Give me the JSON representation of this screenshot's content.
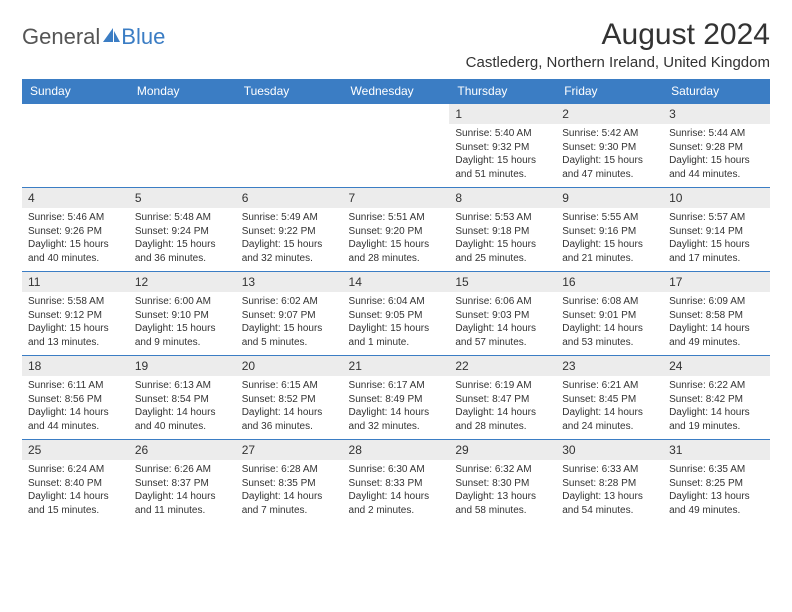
{
  "brand": {
    "name1": "General",
    "name2": "Blue"
  },
  "title": "August 2024",
  "location": "Castlederg, Northern Ireland, United Kingdom",
  "colors": {
    "header_bg": "#3b7dc4",
    "header_text": "#ffffff",
    "daynum_bg": "#ececec",
    "text": "#333333",
    "border": "#3b7dc4",
    "page_bg": "#ffffff"
  },
  "typography": {
    "title_fontsize": 30,
    "location_fontsize": 15,
    "header_fontsize": 12,
    "daynum_fontsize": 12,
    "body_fontsize": 10
  },
  "day_headers": [
    "Sunday",
    "Monday",
    "Tuesday",
    "Wednesday",
    "Thursday",
    "Friday",
    "Saturday"
  ],
  "weeks": [
    [
      null,
      null,
      null,
      null,
      {
        "n": "1",
        "sr": "5:40 AM",
        "ss": "9:32 PM",
        "dl": "15 hours and 51 minutes."
      },
      {
        "n": "2",
        "sr": "5:42 AM",
        "ss": "9:30 PM",
        "dl": "15 hours and 47 minutes."
      },
      {
        "n": "3",
        "sr": "5:44 AM",
        "ss": "9:28 PM",
        "dl": "15 hours and 44 minutes."
      }
    ],
    [
      {
        "n": "4",
        "sr": "5:46 AM",
        "ss": "9:26 PM",
        "dl": "15 hours and 40 minutes."
      },
      {
        "n": "5",
        "sr": "5:48 AM",
        "ss": "9:24 PM",
        "dl": "15 hours and 36 minutes."
      },
      {
        "n": "6",
        "sr": "5:49 AM",
        "ss": "9:22 PM",
        "dl": "15 hours and 32 minutes."
      },
      {
        "n": "7",
        "sr": "5:51 AM",
        "ss": "9:20 PM",
        "dl": "15 hours and 28 minutes."
      },
      {
        "n": "8",
        "sr": "5:53 AM",
        "ss": "9:18 PM",
        "dl": "15 hours and 25 minutes."
      },
      {
        "n": "9",
        "sr": "5:55 AM",
        "ss": "9:16 PM",
        "dl": "15 hours and 21 minutes."
      },
      {
        "n": "10",
        "sr": "5:57 AM",
        "ss": "9:14 PM",
        "dl": "15 hours and 17 minutes."
      }
    ],
    [
      {
        "n": "11",
        "sr": "5:58 AM",
        "ss": "9:12 PM",
        "dl": "15 hours and 13 minutes."
      },
      {
        "n": "12",
        "sr": "6:00 AM",
        "ss": "9:10 PM",
        "dl": "15 hours and 9 minutes."
      },
      {
        "n": "13",
        "sr": "6:02 AM",
        "ss": "9:07 PM",
        "dl": "15 hours and 5 minutes."
      },
      {
        "n": "14",
        "sr": "6:04 AM",
        "ss": "9:05 PM",
        "dl": "15 hours and 1 minute."
      },
      {
        "n": "15",
        "sr": "6:06 AM",
        "ss": "9:03 PM",
        "dl": "14 hours and 57 minutes."
      },
      {
        "n": "16",
        "sr": "6:08 AM",
        "ss": "9:01 PM",
        "dl": "14 hours and 53 minutes."
      },
      {
        "n": "17",
        "sr": "6:09 AM",
        "ss": "8:58 PM",
        "dl": "14 hours and 49 minutes."
      }
    ],
    [
      {
        "n": "18",
        "sr": "6:11 AM",
        "ss": "8:56 PM",
        "dl": "14 hours and 44 minutes."
      },
      {
        "n": "19",
        "sr": "6:13 AM",
        "ss": "8:54 PM",
        "dl": "14 hours and 40 minutes."
      },
      {
        "n": "20",
        "sr": "6:15 AM",
        "ss": "8:52 PM",
        "dl": "14 hours and 36 minutes."
      },
      {
        "n": "21",
        "sr": "6:17 AM",
        "ss": "8:49 PM",
        "dl": "14 hours and 32 minutes."
      },
      {
        "n": "22",
        "sr": "6:19 AM",
        "ss": "8:47 PM",
        "dl": "14 hours and 28 minutes."
      },
      {
        "n": "23",
        "sr": "6:21 AM",
        "ss": "8:45 PM",
        "dl": "14 hours and 24 minutes."
      },
      {
        "n": "24",
        "sr": "6:22 AM",
        "ss": "8:42 PM",
        "dl": "14 hours and 19 minutes."
      }
    ],
    [
      {
        "n": "25",
        "sr": "6:24 AM",
        "ss": "8:40 PM",
        "dl": "14 hours and 15 minutes."
      },
      {
        "n": "26",
        "sr": "6:26 AM",
        "ss": "8:37 PM",
        "dl": "14 hours and 11 minutes."
      },
      {
        "n": "27",
        "sr": "6:28 AM",
        "ss": "8:35 PM",
        "dl": "14 hours and 7 minutes."
      },
      {
        "n": "28",
        "sr": "6:30 AM",
        "ss": "8:33 PM",
        "dl": "14 hours and 2 minutes."
      },
      {
        "n": "29",
        "sr": "6:32 AM",
        "ss": "8:30 PM",
        "dl": "13 hours and 58 minutes."
      },
      {
        "n": "30",
        "sr": "6:33 AM",
        "ss": "8:28 PM",
        "dl": "13 hours and 54 minutes."
      },
      {
        "n": "31",
        "sr": "6:35 AM",
        "ss": "8:25 PM",
        "dl": "13 hours and 49 minutes."
      }
    ]
  ],
  "labels": {
    "sunrise": "Sunrise: ",
    "sunset": "Sunset: ",
    "daylight": "Daylight: "
  }
}
